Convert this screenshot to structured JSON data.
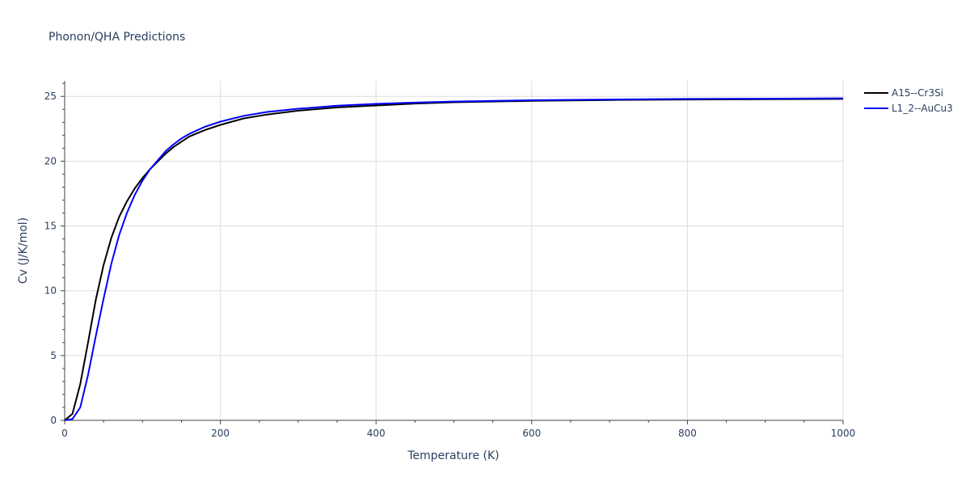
{
  "chart_data": {
    "type": "line",
    "title": "Phonon/QHA Predictions",
    "xlabel": "Temperature (K)",
    "ylabel": "Cv (J/K/mol)",
    "xlim": [
      0,
      1000
    ],
    "ylim": [
      0,
      26.2
    ],
    "xticks": [
      0,
      200,
      400,
      600,
      800,
      1000
    ],
    "yticks": [
      0,
      5,
      10,
      15,
      20,
      25
    ],
    "grid": true,
    "legend_position": "top-right outside plot",
    "series": [
      {
        "name": "A15--Cr3Si",
        "color": "#000000",
        "x": [
          0,
          10,
          20,
          30,
          40,
          50,
          60,
          70,
          80,
          90,
          100,
          110,
          120,
          130,
          140,
          150,
          160,
          180,
          200,
          230,
          260,
          300,
          350,
          400,
          450,
          500,
          600,
          700,
          800,
          900,
          1000
        ],
        "y": [
          0,
          0.5,
          2.8,
          6.0,
          9.3,
          12.0,
          14.1,
          15.7,
          16.9,
          17.9,
          18.7,
          19.4,
          20.0,
          20.6,
          21.1,
          21.5,
          21.9,
          22.4,
          22.8,
          23.3,
          23.6,
          23.9,
          24.15,
          24.3,
          24.45,
          24.55,
          24.65,
          24.72,
          24.76,
          24.78,
          24.8
        ]
      },
      {
        "name": "L1_2--AuCu3",
        "color": "#0000ff",
        "x": [
          0,
          10,
          20,
          30,
          40,
          50,
          60,
          70,
          80,
          90,
          100,
          110,
          120,
          130,
          140,
          150,
          160,
          180,
          200,
          230,
          260,
          300,
          350,
          400,
          450,
          500,
          600,
          700,
          800,
          900,
          1000
        ],
        "y": [
          0,
          0.1,
          1.0,
          3.5,
          6.5,
          9.4,
          12.1,
          14.3,
          16.0,
          17.4,
          18.5,
          19.4,
          20.1,
          20.8,
          21.3,
          21.75,
          22.1,
          22.65,
          23.05,
          23.5,
          23.8,
          24.05,
          24.28,
          24.42,
          24.52,
          24.6,
          24.7,
          24.76,
          24.8,
          24.82,
          24.85
        ]
      }
    ]
  }
}
